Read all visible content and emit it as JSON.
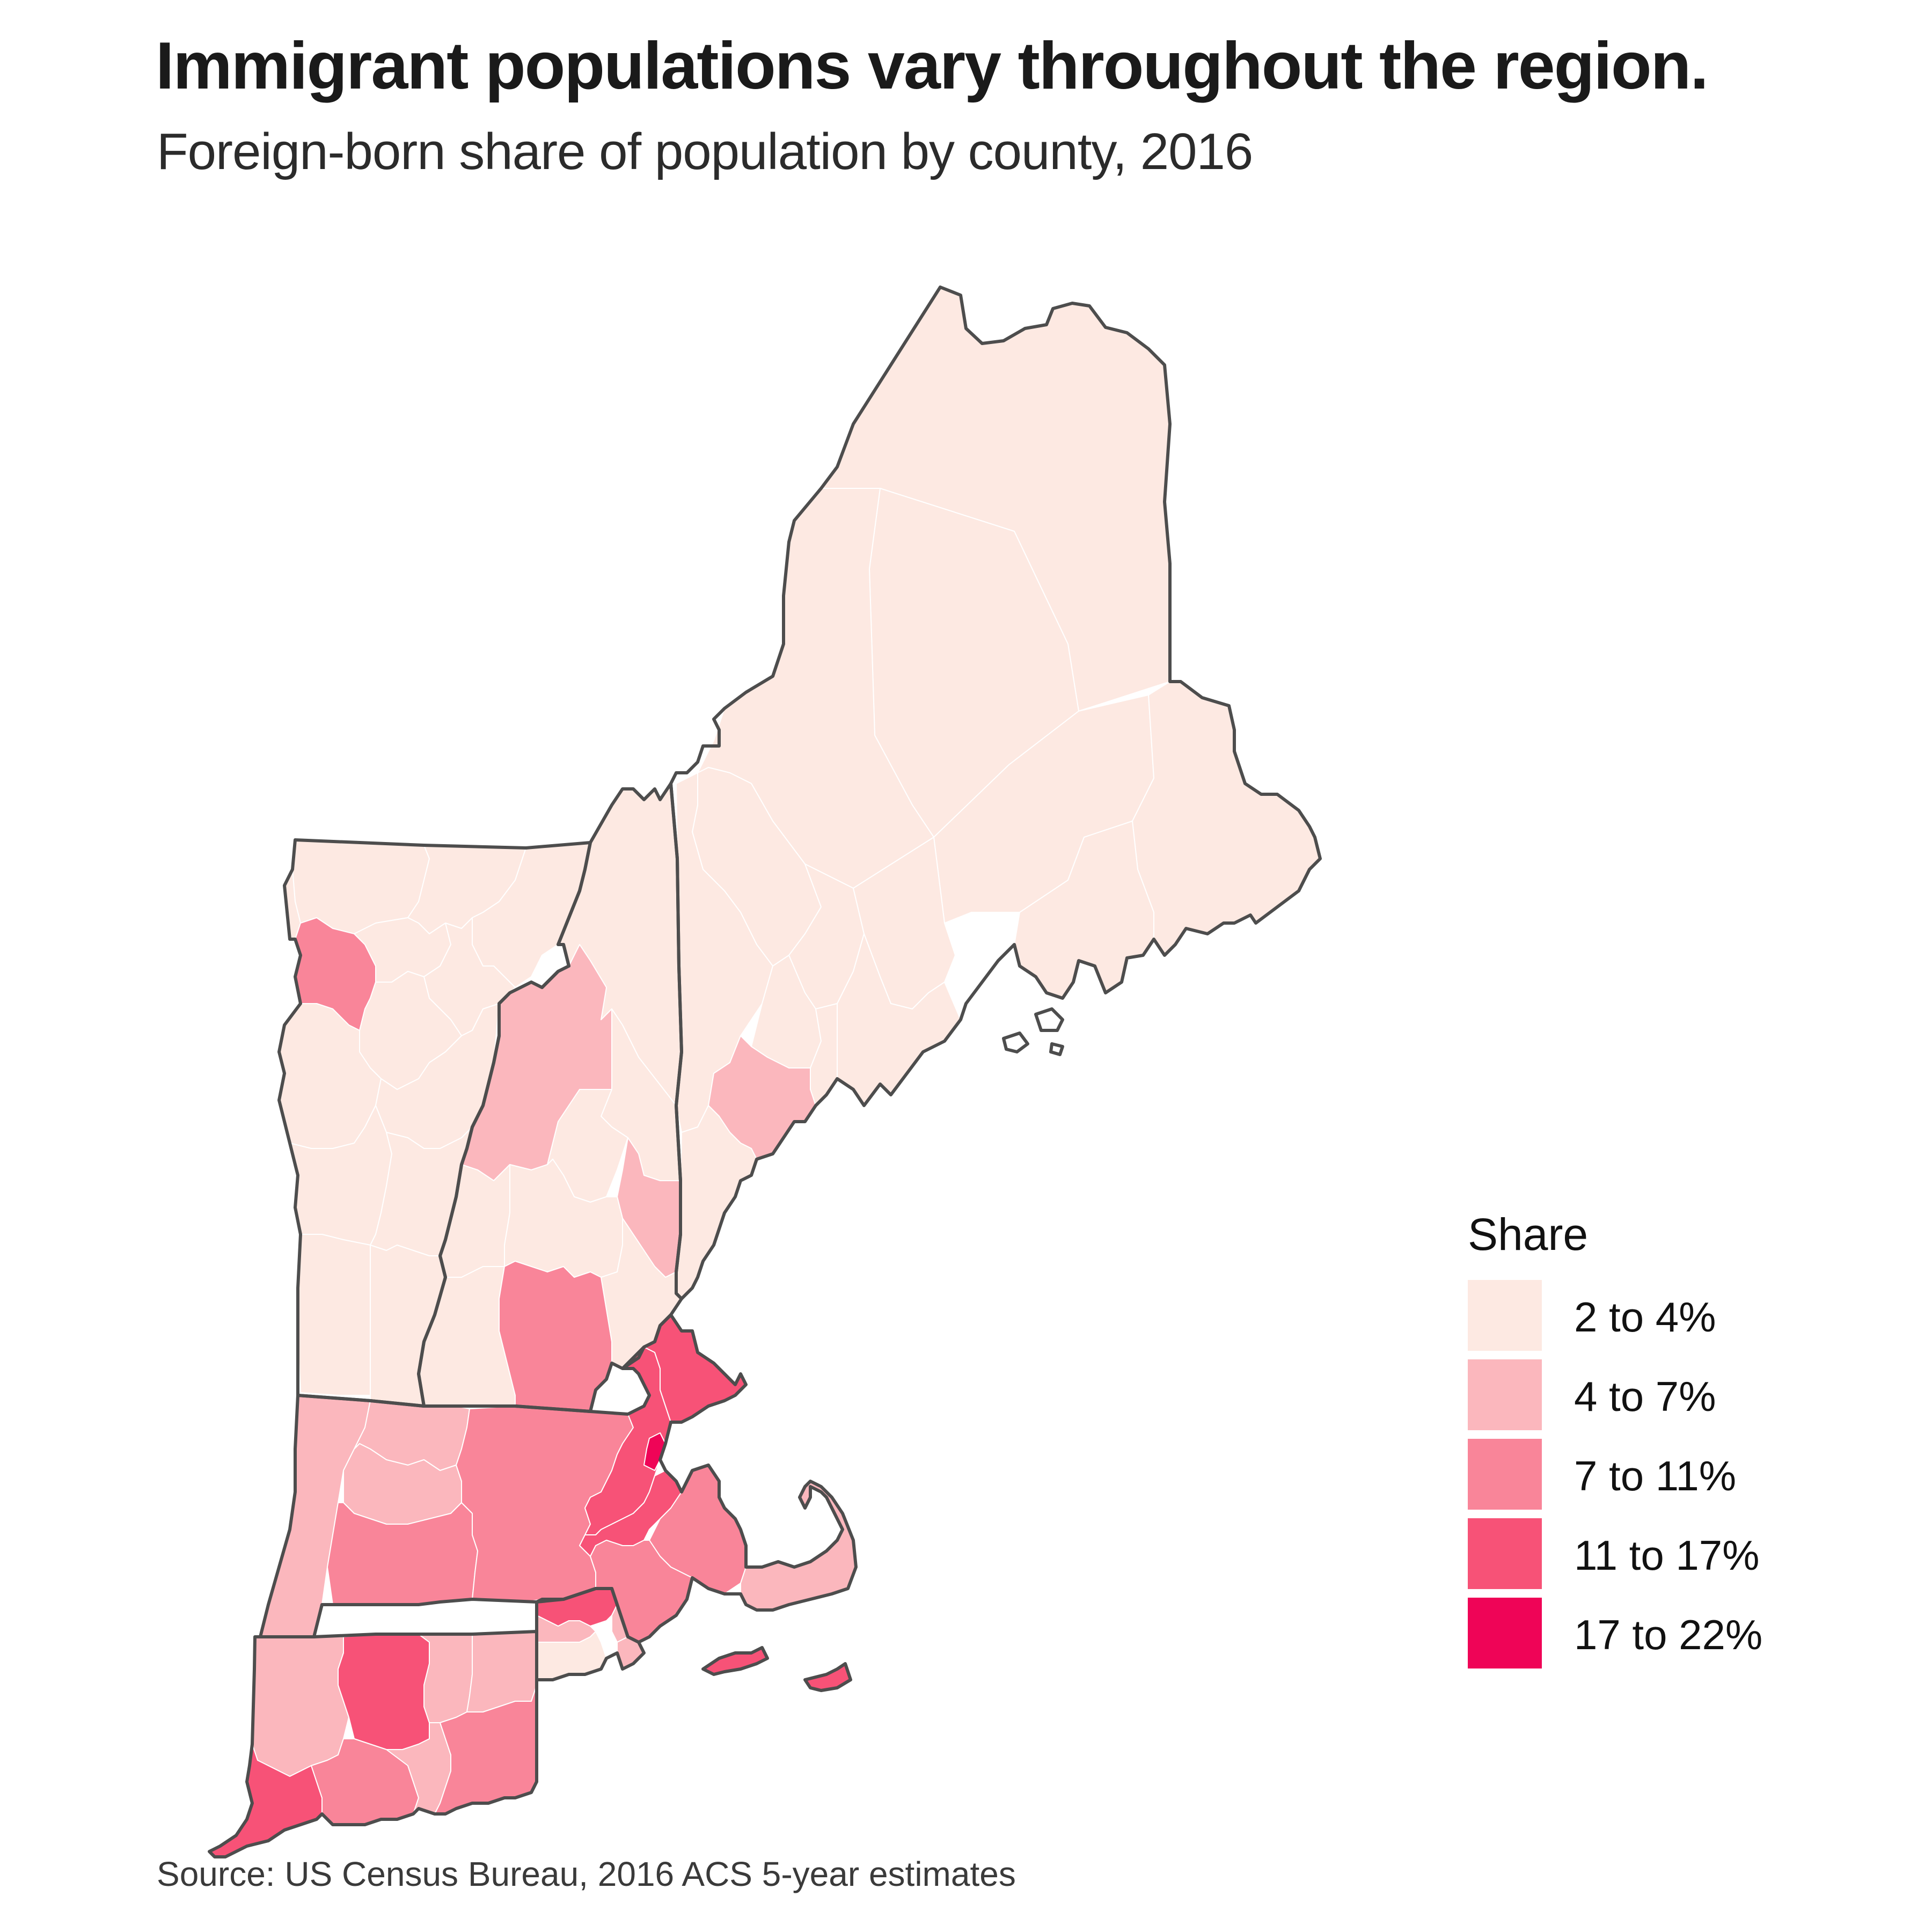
{
  "header": {
    "title": "Immigrant populations vary throughout the region.",
    "subtitle": "Foreign-born share of population by county, 2016"
  },
  "footer": {
    "source": "Source: US Census Bureau, 2016 ACS 5-year estimates"
  },
  "legend": {
    "title": "Share",
    "items": [
      {
        "label": "2 to 4%",
        "color": "#fde9e2"
      },
      {
        "label": "4 to 7%",
        "color": "#fbb7bd"
      },
      {
        "label": "7 to 11%",
        "color": "#f98599"
      },
      {
        "label": "11 to 17%",
        "color": "#f75277"
      },
      {
        "label": "17 to 22%",
        "color": "#ef0457"
      }
    ]
  },
  "colors": {
    "state_border": "#4d4d4d",
    "county_border": "#ffffff"
  }
}
